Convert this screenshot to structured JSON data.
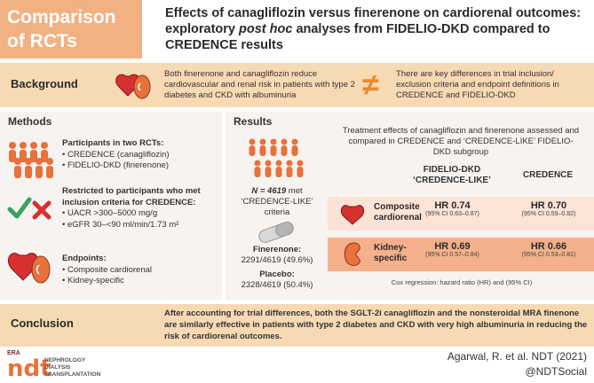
{
  "header": {
    "tag_line1": "Comparison",
    "tag_line2": "of RCTs",
    "title_part1": "Effects of canagliflozin versus finerenone on cardiorenal outcomes: exploratory ",
    "title_italic": "post hoc",
    "title_part2": " analyses from FIDELIO-DKD compared to CREDENCE results"
  },
  "background": {
    "label": "Background",
    "text_left": "Both finerenone and canagliflozin reduce cardiovascular and renal risk in patients with type 2 diabetes and CKD with albuminuria",
    "neq_symbol": "≠",
    "text_right": "There are key differences in trial inclusion/ exclusion criteria and endpoint definitions in CREDENCE and FIDELIO-DKD"
  },
  "methods": {
    "title": "Methods",
    "participants_heading": "Participants in two RCTs:",
    "participants": [
      "CREDENCE (canagliflozin)",
      "FIDELIO-DKD (finerenone)"
    ],
    "restricted_heading": "Restricted to participants who met inclusion criteria for CREDENCE:",
    "criteria": [
      "UACR >300–5000 mg/g",
      "eGFR 30–<90 ml/min/1.73 m²"
    ],
    "endpoints_heading": "Endpoints:",
    "endpoints": [
      "Composite cardiorenal",
      "Kidney-specific"
    ]
  },
  "results": {
    "title": "Results",
    "n_label": "N = 4619",
    "n_suffix": " met ‘CREDENCE-LIKE’ criteria",
    "finerenone_label": "Finerenone:",
    "finerenone_value": "2291/4619 (49.6%)",
    "placebo_label": "Placebo:",
    "placebo_value": "2328/4619 (50.4%)",
    "description": "Treatment effects of canagliflozin and finerenone assessed and compared in CREDENCE and ‘CREDENCE-LIKE’ FIDELIO-DKD subgroup",
    "col1_line1": "FIDELIO-DKD",
    "col1_line2": "‘CREDENCE-LIKE’",
    "col2": "CREDENCE",
    "rows": [
      {
        "label_line1": "Composite",
        "label_line2": "cardiorenal",
        "fidelio_hr": "HR 0.74",
        "fidelio_ci": "(95% CI 0.63–0.87)",
        "credence_hr": "HR 0.70",
        "credence_ci": "(95% CI 0.59–0.82)"
      },
      {
        "label_line1": "Kidney-",
        "label_line2": "specific",
        "fidelio_hr": "HR 0.69",
        "fidelio_ci": "(95% CI 0.57–0.84)",
        "credence_hr": "HR 0.66",
        "credence_ci": "(95% CI 0.53–0.81)"
      }
    ],
    "cox_note": "Cox regression: hazard ratio (HR) and (95% CI)"
  },
  "conclusion": {
    "label": "Conclusion",
    "text": "After accounting for trial differences, both the SGLT-2i canagliflozin and the nonsteroidal MRA finenone are similarly effective in patients with type 2 diabetes and CKD with very high albuminuria in reducing the risk of cardiorenal outcomes."
  },
  "footer": {
    "logo_era": "ERA",
    "logo_ndt": "ndt",
    "logo_word1": "NEPHROLOGY",
    "logo_word2": "DIALYSIS",
    "logo_word3": "TRANSPLANTATION",
    "citation": "Agarwal, R. et al. NDT (2021)",
    "handle": "@NDTSocial"
  },
  "colors": {
    "accent_orange": "#e8713c",
    "peach": "#f7d9b4",
    "tag_orange": "#f2b183",
    "check_green": "#3aa35a",
    "cross_red": "#d6302f"
  },
  "icons": [
    "heart-kidney-icon",
    "not-equal-icon",
    "people-group-icon",
    "check-icon",
    "cross-icon",
    "pill-icon",
    "heart-icon",
    "kidney-icon"
  ]
}
